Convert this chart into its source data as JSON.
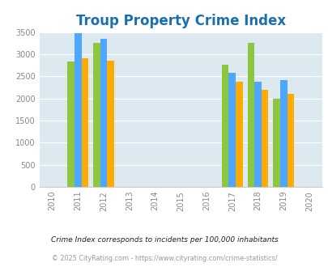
{
  "title": "Troup Property Crime Index",
  "title_color": "#1a6fad",
  "years": [
    2010,
    2011,
    2012,
    2013,
    2014,
    2015,
    2016,
    2017,
    2018,
    2019,
    2020
  ],
  "bar_years": [
    2011,
    2012,
    2017,
    2018,
    2019
  ],
  "troup": [
    2830,
    3250,
    2760,
    3250,
    1990
  ],
  "texas": [
    3470,
    3340,
    2570,
    2380,
    2410
  ],
  "national": [
    2900,
    2860,
    2380,
    2200,
    2110
  ],
  "troup_color": "#8dc63f",
  "texas_color": "#4da6ff",
  "national_color": "#ffaa00",
  "bg_color": "#dce9f0",
  "ylim": [
    0,
    3500
  ],
  "yticks": [
    0,
    500,
    1000,
    1500,
    2000,
    2500,
    3000,
    3500
  ],
  "tick_fontsize": 7,
  "title_fontsize": 12,
  "legend_fontsize": 8.5,
  "footnote1": "Crime Index corresponds to incidents per 100,000 inhabitants",
  "footnote2": "© 2025 CityRating.com - https://www.cityrating.com/crime-statistics/",
  "footnote1_color": "#222222",
  "footnote2_color": "#999999"
}
